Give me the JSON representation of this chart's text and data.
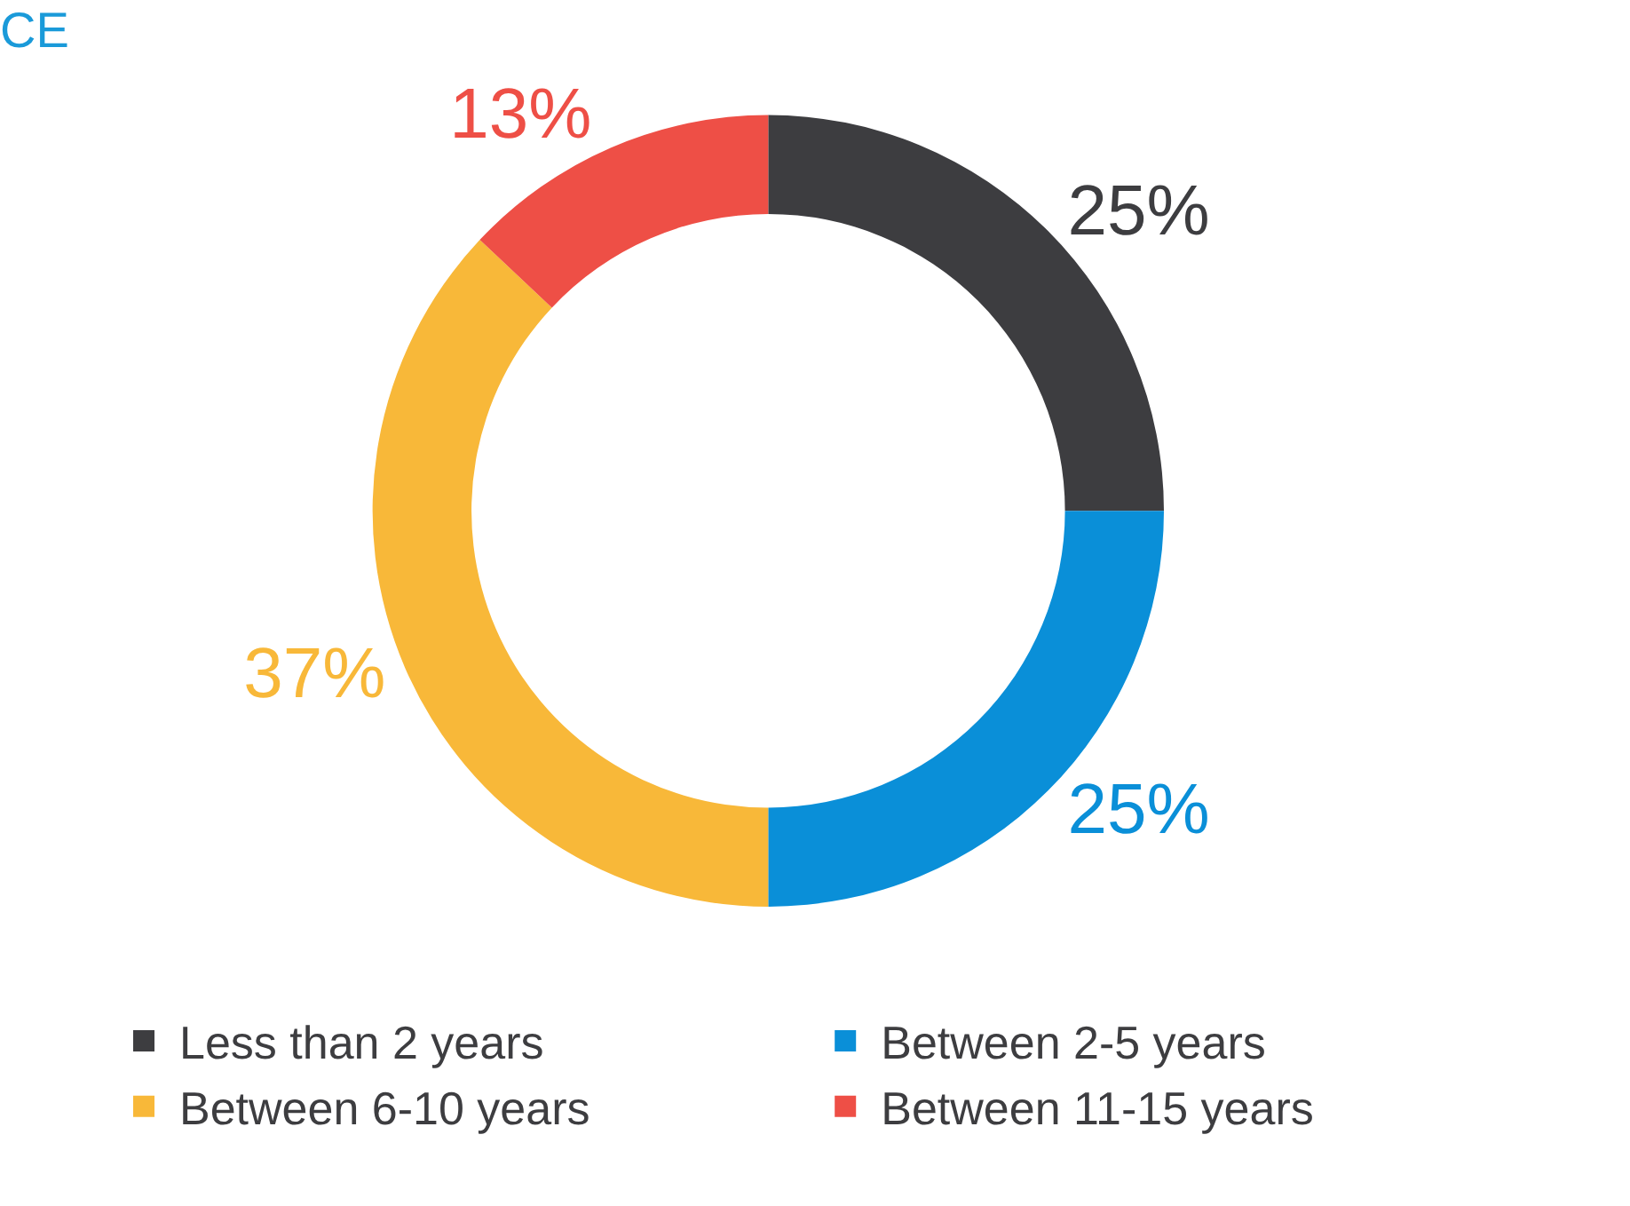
{
  "chart_data": {
    "type": "donut",
    "title": "CE",
    "categories": [
      "Less than 2 years",
      "Between 2-5 years",
      "Between 6-10 years",
      "Between 11-15 years"
    ],
    "values": [
      25,
      25,
      37,
      13
    ],
    "value_labels": [
      "25%",
      "25%",
      "37%",
      "13%"
    ],
    "colors": [
      "#3d3d40",
      "#0a8fd8",
      "#f8b839",
      "#ee4f46"
    ],
    "legend": "bottom"
  }
}
